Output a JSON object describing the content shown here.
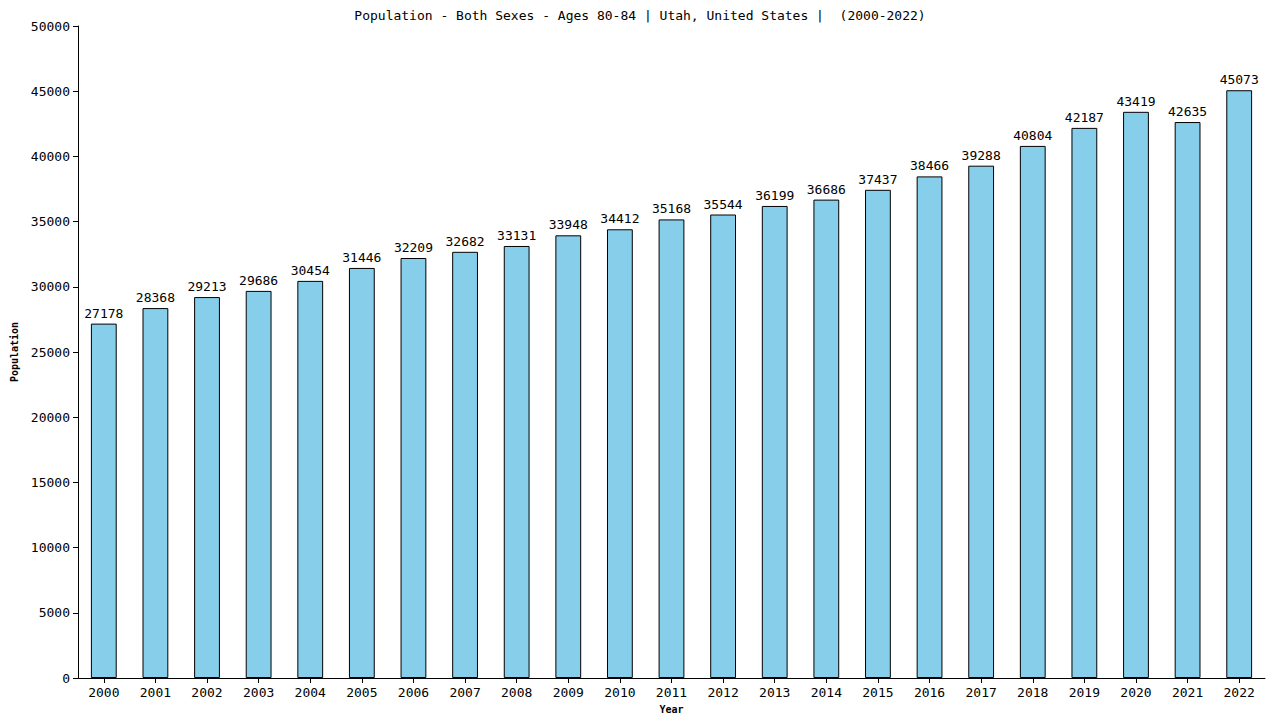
{
  "chart_data": {
    "type": "bar",
    "title": "Population - Both Sexes - Ages 80-84 | Utah, United States |  (2000-2022)",
    "x_label": "Year",
    "y_label": "Population",
    "categories": [
      "2000",
      "2001",
      "2002",
      "2003",
      "2004",
      "2005",
      "2006",
      "2007",
      "2008",
      "2009",
      "2010",
      "2011",
      "2012",
      "2013",
      "2014",
      "2015",
      "2016",
      "2017",
      "2018",
      "2019",
      "2020",
      "2021",
      "2022"
    ],
    "values": [
      27178,
      28368,
      29213,
      29686,
      30454,
      31446,
      32209,
      32682,
      33131,
      33948,
      34412,
      35168,
      35544,
      36199,
      36686,
      37437,
      38466,
      39288,
      40804,
      42187,
      43419,
      42635,
      45073
    ],
    "color": "#87ceeb",
    "ylim": [
      0,
      50000
    ],
    "yticks": [
      0,
      5000,
      10000,
      15000,
      20000,
      25000,
      30000,
      35000,
      40000,
      45000,
      50000
    ],
    "grid": false,
    "data_labels": true
  }
}
